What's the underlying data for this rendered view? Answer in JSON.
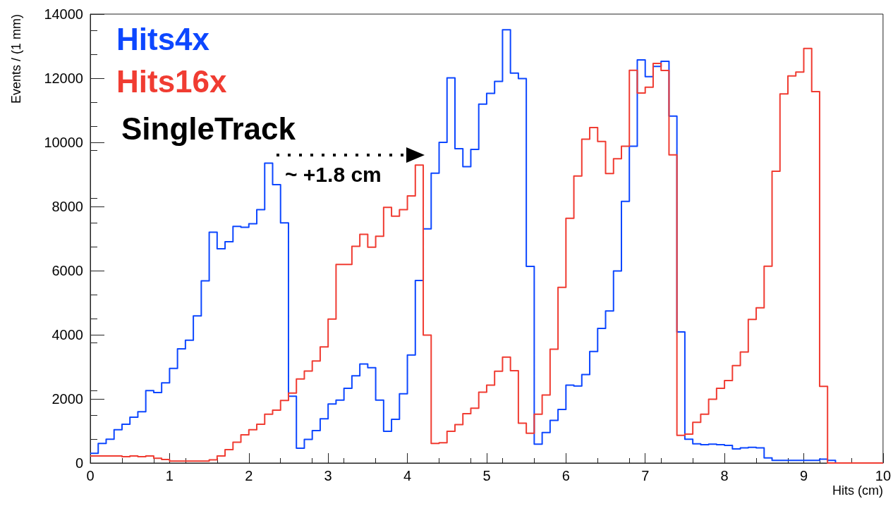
{
  "chart_data": {
    "type": "histogram",
    "xlabel": "Hits (cm)",
    "ylabel": "Events / (1 mm)",
    "bins": [
      0,
      0.1,
      0.2,
      0.3,
      0.4,
      0.5,
      0.6,
      0.7,
      0.8,
      0.9,
      1,
      1.1,
      1.2,
      1.3,
      1.4,
      1.5,
      1.6,
      1.7,
      1.8,
      1.9,
      2,
      2.1,
      2.2,
      2.3,
      2.4,
      2.5,
      2.6,
      2.7,
      2.8,
      2.9,
      3,
      3.1,
      3.2,
      3.3,
      3.4,
      3.5,
      3.6,
      3.7,
      3.8,
      3.9,
      4,
      4.1,
      4.2,
      4.3,
      4.4,
      4.5,
      4.6,
      4.7,
      4.8,
      4.9,
      5,
      5.1,
      5.2,
      5.3,
      5.4,
      5.5,
      5.6,
      5.7,
      5.8,
      5.9,
      6,
      6.1,
      6.2,
      6.3,
      6.4,
      6.5,
      6.6,
      6.7,
      6.8,
      6.9,
      7,
      7.1,
      7.2,
      7.3,
      7.4,
      7.5,
      7.6,
      7.7,
      7.8,
      7.9,
      8,
      8.1,
      8.2,
      8.3,
      8.4,
      8.5,
      8.6,
      8.7,
      8.8,
      8.9,
      9,
      9.1,
      9.2,
      9.3,
      9.4,
      9.5,
      9.6,
      9.7,
      9.8,
      9.9,
      10
    ],
    "series": [
      {
        "name": "Hits4x",
        "color": "#0d47ff",
        "values": [
          300,
          610,
          740,
          1040,
          1210,
          1430,
          1600,
          2260,
          2200,
          2500,
          2950,
          3560,
          3830,
          4590,
          5680,
          7200,
          6680,
          6900,
          7380,
          7350,
          7460,
          7900,
          9350,
          8680,
          7490,
          2080,
          460,
          735,
          1010,
          1380,
          1840,
          1960,
          2330,
          2720,
          3090,
          2970,
          1960,
          990,
          1360,
          2160,
          3370,
          5690,
          7300,
          9040,
          10000,
          12010,
          9800,
          9240,
          9780,
          11190,
          11530,
          11900,
          13510,
          12160,
          11990,
          6130,
          590,
          950,
          1330,
          1670,
          2430,
          2400,
          2760,
          3480,
          4200,
          4740,
          5990,
          8160,
          9880,
          12570,
          12050,
          12370,
          12530,
          10820,
          4090,
          740,
          600,
          570,
          590,
          570,
          550,
          440,
          470,
          490,
          470,
          160,
          80,
          80,
          80,
          80,
          80,
          80,
          120,
          80,
          0,
          0,
          0,
          0,
          0,
          0
        ]
      },
      {
        "name": "Hits16x",
        "color": "#f03c32",
        "values": [
          220,
          220,
          220,
          220,
          200,
          220,
          200,
          220,
          150,
          110,
          60,
          60,
          60,
          60,
          60,
          100,
          220,
          420,
          650,
          880,
          1040,
          1210,
          1520,
          1650,
          1950,
          2180,
          2620,
          2870,
          3180,
          3620,
          4490,
          6190,
          6190,
          6760,
          7130,
          6730,
          7070,
          7970,
          7700,
          7900,
          8330,
          9290,
          3990,
          610,
          630,
          990,
          1200,
          1540,
          1710,
          2210,
          2430,
          2860,
          3300,
          2880,
          1240,
          930,
          1520,
          2120,
          3550,
          5480,
          7630,
          8950,
          10100,
          10460,
          10030,
          9030,
          9490,
          9880,
          12250,
          11540,
          11720,
          12460,
          12240,
          9610,
          860,
          900,
          1270,
          1520,
          1990,
          2330,
          2570,
          3040,
          3460,
          4480,
          4840,
          6140,
          9100,
          11510,
          12070,
          12190,
          12930,
          11580,
          2390,
          0,
          0,
          0,
          0,
          0,
          0,
          0
        ]
      }
    ],
    "xlim": [
      0,
      10
    ],
    "xticks": [
      0,
      1,
      2,
      3,
      4,
      5,
      6,
      7,
      8,
      9,
      10
    ],
    "ylim": [
      0,
      14000
    ],
    "yticks": [
      0,
      2000,
      4000,
      6000,
      8000,
      10000,
      12000,
      14000
    ],
    "grid": false,
    "legend": "top left",
    "annotations": [
      "SingleTrack",
      "~ +1.8 cm"
    ]
  }
}
